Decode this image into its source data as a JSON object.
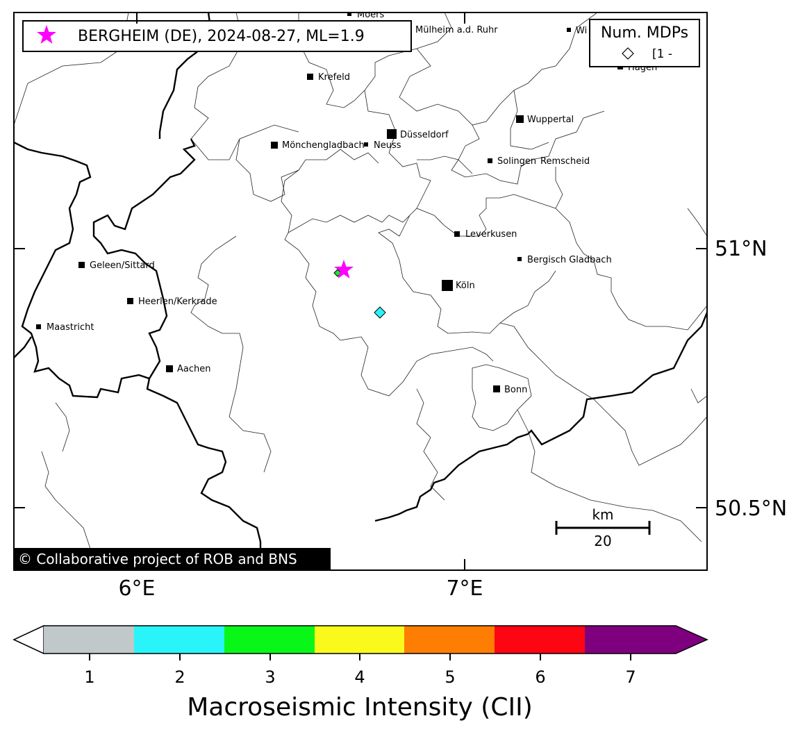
{
  "event_legend": {
    "marker_color": "#ff00ff",
    "label": "BERGHEIM (DE), 2024-08-27, ML=1.9"
  },
  "mdp_legend": {
    "title": "Num. MDPs",
    "entry": "[1 -"
  },
  "cities": [
    {
      "name": "Moers"
    },
    {
      "name": "Mülheim a.d. Ruhr"
    },
    {
      "name": "Wi"
    },
    {
      "name": "Hagen"
    },
    {
      "name": "Krefeld"
    },
    {
      "name": "Wuppertal"
    },
    {
      "name": "Düsseldorf"
    },
    {
      "name": "Mönchengladbach"
    },
    {
      "name": "Neuss"
    },
    {
      "name": "Solingen"
    },
    {
      "name": "Remscheid"
    },
    {
      "name": "Leverkusen"
    },
    {
      "name": "Bergisch Gladbach"
    },
    {
      "name": "Geleen/Sittard"
    },
    {
      "name": "Köln"
    },
    {
      "name": "Heerlen/Kerkrade"
    },
    {
      "name": "Maastricht"
    },
    {
      "name": "Aachen"
    },
    {
      "name": "Bonn"
    }
  ],
  "axes": {
    "lat_ticks": [
      "51°N",
      "50.5°N"
    ],
    "lon_ticks": [
      "6°E",
      "7°E"
    ]
  },
  "scale_bar": {
    "unit": "km",
    "value": "20"
  },
  "copyright": "© Collaborative project of ROB and BNS",
  "mdp_points": [
    {
      "intensity": 2,
      "color": "#29f4fa"
    },
    {
      "intensity": 3,
      "color": "#08f719"
    }
  ],
  "colorbar": {
    "title": "Macroseismic Intensity (CII)",
    "ticks": [
      "1",
      "2",
      "3",
      "4",
      "5",
      "6",
      "7"
    ],
    "colors": [
      "#c1c8c9",
      "#29f4fa",
      "#08f719",
      "#f9f91b",
      "#fd7e02",
      "#fd0512",
      "#7f007f"
    ],
    "under_color": "#ffffff",
    "over_color": "#7f007f"
  }
}
